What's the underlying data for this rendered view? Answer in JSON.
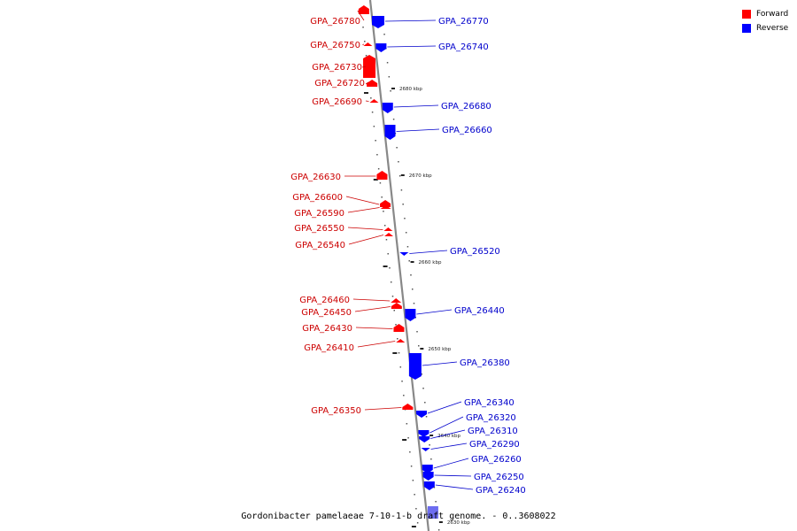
{
  "legend": {
    "forward_label": "Forward",
    "reverse_label": "Reverse",
    "forward_color": "#ff0000",
    "reverse_color": "#0000ff"
  },
  "caption": "Gordonibacter pamelaeae 7-10-1-b draft genome. - 0..3608022",
  "colors": {
    "backbone": "#888888",
    "forward_label": "#cc0000",
    "reverse_label": "#0000cc"
  },
  "ticks": [
    {
      "label": "2680 kbp"
    },
    {
      "label": "2670 kbp"
    },
    {
      "label": "2660 kbp"
    },
    {
      "label": "2650 kbp"
    },
    {
      "label": "2640 kbp"
    },
    {
      "label": "2630 kbp"
    }
  ],
  "forward_genes": [
    {
      "label": "GPA_26780"
    },
    {
      "label": "GPA_26750"
    },
    {
      "label": "GPA_26730"
    },
    {
      "label": "GPA_26720"
    },
    {
      "label": "GPA_26690"
    },
    {
      "label": "GPA_26630"
    },
    {
      "label": "GPA_26600"
    },
    {
      "label": "GPA_26590"
    },
    {
      "label": "GPA_26550"
    },
    {
      "label": "GPA_26540"
    },
    {
      "label": "GPA_26460"
    },
    {
      "label": "GPA_26450"
    },
    {
      "label": "GPA_26430"
    },
    {
      "label": "GPA_26410"
    },
    {
      "label": "GPA_26350"
    }
  ],
  "reverse_genes": [
    {
      "label": "GPA_26770"
    },
    {
      "label": "GPA_26740"
    },
    {
      "label": "GPA_26680"
    },
    {
      "label": "GPA_26660"
    },
    {
      "label": "GPA_26520"
    },
    {
      "label": "GPA_26440"
    },
    {
      "label": "GPA_26380"
    },
    {
      "label": "GPA_26340"
    },
    {
      "label": "GPA_26320"
    },
    {
      "label": "GPA_26310"
    },
    {
      "label": "GPA_26290"
    },
    {
      "label": "GPA_26260"
    },
    {
      "label": "GPA_26250"
    },
    {
      "label": "GPA_26240"
    }
  ]
}
